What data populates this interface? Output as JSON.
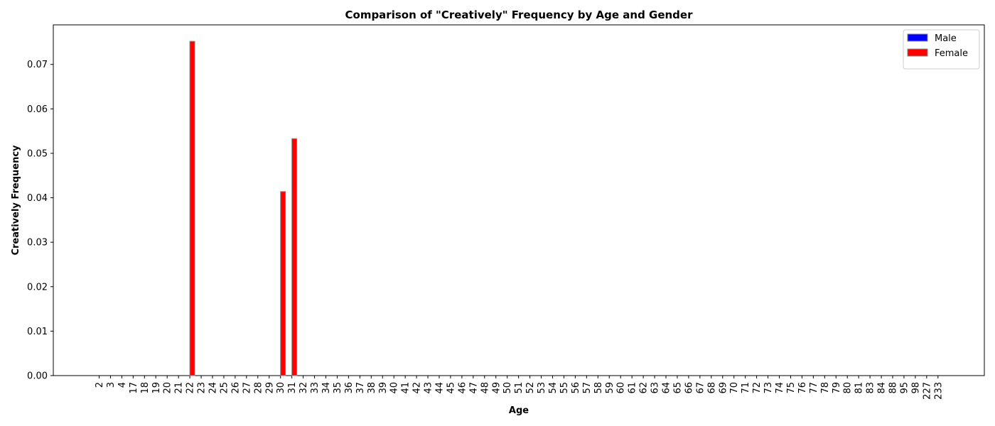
{
  "chart_data": {
    "type": "bar",
    "title": "Comparison of \"Creatively\" Frequency by Age and Gender",
    "xlabel": "Age",
    "ylabel": "Creatively Frequency",
    "categories": [
      "2",
      "3",
      "4",
      "17",
      "18",
      "19",
      "20",
      "21",
      "22",
      "23",
      "24",
      "25",
      "26",
      "27",
      "28",
      "29",
      "30",
      "31",
      "32",
      "33",
      "34",
      "35",
      "36",
      "37",
      "38",
      "39",
      "40",
      "41",
      "42",
      "43",
      "44",
      "45",
      "46",
      "47",
      "48",
      "49",
      "50",
      "51",
      "52",
      "53",
      "54",
      "55",
      "56",
      "57",
      "58",
      "59",
      "60",
      "61",
      "62",
      "63",
      "64",
      "65",
      "66",
      "67",
      "68",
      "69",
      "70",
      "71",
      "72",
      "73",
      "74",
      "75",
      "76",
      "77",
      "78",
      "79",
      "80",
      "81",
      "83",
      "84",
      "88",
      "95",
      "98",
      "227",
      "233"
    ],
    "series": [
      {
        "name": "Male",
        "color": "#0000ff",
        "values": [
          0,
          0,
          0,
          0,
          0,
          0,
          0,
          0,
          0,
          0,
          0,
          0,
          0,
          0,
          0,
          0,
          0,
          0,
          0,
          0,
          0,
          0,
          0,
          0,
          0,
          0,
          0,
          0,
          0,
          0,
          0,
          0,
          0,
          0,
          0,
          0,
          0,
          0,
          0,
          0,
          0,
          0,
          0,
          0,
          0,
          0,
          0,
          0,
          0,
          0,
          0,
          0,
          0,
          0,
          0,
          0,
          0,
          0,
          0,
          0,
          0,
          0,
          0,
          0,
          0,
          0,
          0,
          0,
          0,
          0,
          0,
          0,
          0,
          0,
          0
        ]
      },
      {
        "name": "Female",
        "color": "#ff0000",
        "values": [
          0,
          0,
          0,
          0,
          0,
          0,
          0,
          0,
          0.0752,
          0,
          0,
          0,
          0,
          0,
          0,
          0,
          0.0414,
          0.0533,
          0,
          0,
          0,
          0,
          0,
          0,
          0,
          0,
          0,
          0,
          0,
          0,
          0,
          0,
          0,
          0,
          0,
          0,
          0,
          0,
          0,
          0,
          0,
          0,
          0,
          0,
          0,
          0,
          0,
          0,
          0,
          0,
          0,
          0,
          0,
          0,
          0,
          0,
          0,
          0,
          0,
          0,
          0,
          0,
          0,
          0,
          0,
          0,
          0,
          0,
          0,
          0,
          0,
          0,
          0,
          0,
          0
        ]
      }
    ],
    "yticks": [
      "0.00",
      "0.01",
      "0.02",
      "0.03",
      "0.04",
      "0.05",
      "0.06",
      "0.07"
    ],
    "ylim": [
      0,
      0.0789
    ],
    "grid": false,
    "legend_position": "top-right"
  }
}
